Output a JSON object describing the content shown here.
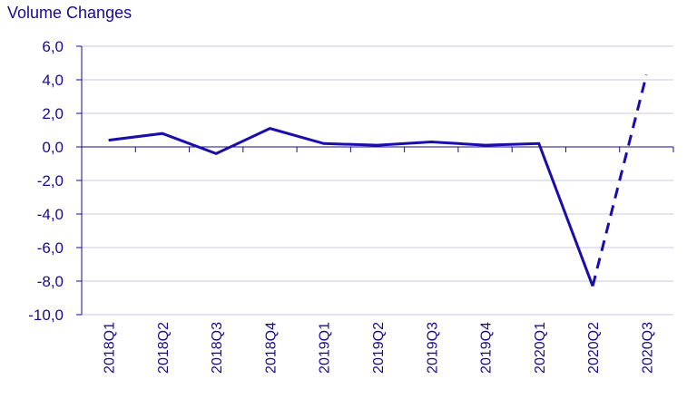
{
  "chart_data": {
    "type": "line",
    "title": "Volume Changes",
    "xlabel": "",
    "ylabel": "",
    "categories": [
      "2018Q1",
      "2018Q2",
      "2018Q3",
      "2018Q4",
      "2019Q1",
      "2019Q2",
      "2019Q3",
      "2019Q4",
      "2020Q1",
      "2020Q2",
      "2020Q3"
    ],
    "y_tick_labels": [
      "6,0",
      "4,0",
      "2,0",
      "0,0",
      "-2,0",
      "-4,0",
      "-6,0",
      "-8,0",
      "-10,0"
    ],
    "y_ticks": [
      6,
      4,
      2,
      0,
      -2,
      -4,
      -6,
      -8,
      -10
    ],
    "ylim": [
      -10,
      6
    ],
    "grid": true,
    "series": [
      {
        "values": [
          0.4,
          0.8,
          -0.4,
          1.1,
          0.2,
          0.1,
          0.3,
          0.1,
          0.2,
          -8.3,
          4.3
        ],
        "dashed_from_index": 9,
        "color": "#1a0dab"
      }
    ]
  },
  "colors": {
    "line": "#1a0dab",
    "text": "#1a0a8c",
    "grid": "#c8c8e0",
    "axis": "#1a0a8c"
  }
}
